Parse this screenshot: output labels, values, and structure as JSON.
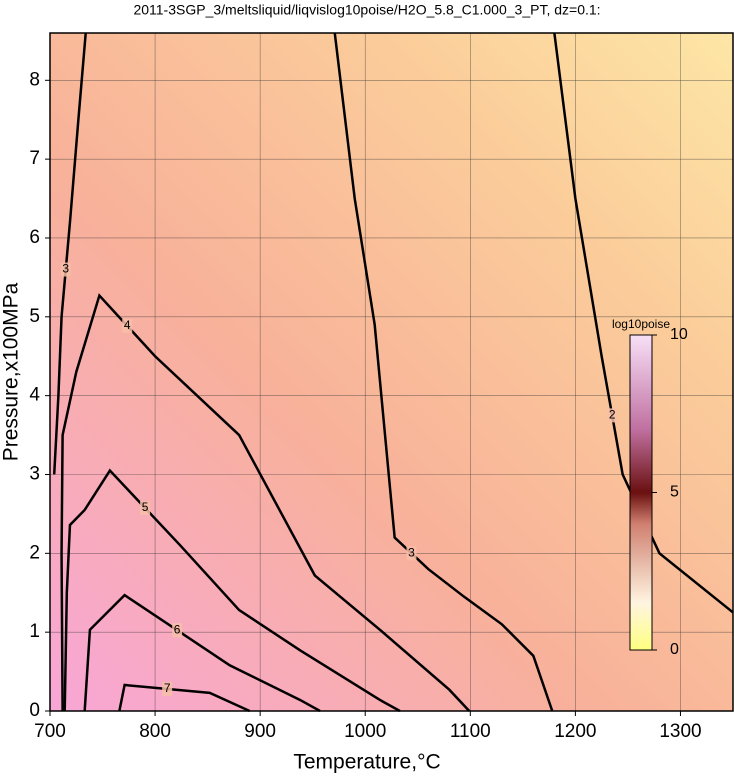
{
  "chart_data": {
    "type": "contour",
    "title": "2011-3SGP_3/meltsliquid/liqvislog10poise/H2O_5.8_C1.000_3_PT, dz=0.1:",
    "x_label": "Temperature,°C",
    "y_label": "Pressure,x100MPa",
    "xlim": [
      700,
      1350
    ],
    "xticks": [
      700,
      800,
      900,
      1000,
      1100,
      1200,
      1300
    ],
    "ylim": [
      0,
      8.6
    ],
    "yticks": [
      0,
      1,
      2,
      3,
      4,
      5,
      6,
      7,
      8
    ],
    "grid": true,
    "contours": [
      {
        "level": 2,
        "color": "#000000",
        "x": [
          1180,
          1200,
          1225,
          1245,
          1280,
          1350
        ],
        "y": [
          8.6,
          6.5,
          4.5,
          3.0,
          2.0,
          1.25
        ]
      },
      {
        "level": 3,
        "color": "#000000",
        "x": [
          971,
          990,
          1009,
          1028,
          1060,
          1094,
          1130,
          1160,
          1178
        ],
        "y": [
          8.6,
          6.5,
          4.9,
          2.2,
          1.8,
          1.45,
          1.1,
          0.7,
          0
        ]
      },
      {
        "level": 3,
        "color": "#000000",
        "x": [
          734,
          727,
          719,
          711,
          708,
          704
        ],
        "y": [
          8.6,
          7.5,
          6.2,
          5.0,
          4.0,
          3.0
        ]
      },
      {
        "level": 4,
        "color": "#000000",
        "x": [
          712,
          711,
          712,
          725,
          747,
          800,
          880,
          952,
          1014,
          1080,
          1099
        ],
        "y": [
          0,
          2,
          3.5,
          4.3,
          5.27,
          4.5,
          3.5,
          1.72,
          1.03,
          0.27,
          0
        ]
      },
      {
        "level": 5,
        "color": "#000000",
        "x": [
          714,
          716,
          719,
          733,
          757,
          824,
          880,
          938,
          1014,
          1033
        ],
        "y": [
          0,
          1.5,
          2.36,
          2.55,
          3.05,
          2.1,
          1.28,
          0.77,
          0.14,
          0
        ]
      },
      {
        "level": 6,
        "color": "#000000",
        "x": [
          733,
          738,
          771,
          871,
          938,
          957
        ],
        "y": [
          0,
          1.03,
          1.47,
          0.58,
          0.14,
          0
        ]
      },
      {
        "level": 7,
        "color": "#000000",
        "x": [
          766,
          771,
          852,
          890
        ],
        "y": [
          0,
          0.33,
          0.23,
          0
        ]
      }
    ],
    "colorbar": {
      "label": "log10poise",
      "lim": [
        0,
        10
      ],
      "ticks": [
        0,
        5,
        10
      ]
    }
  }
}
